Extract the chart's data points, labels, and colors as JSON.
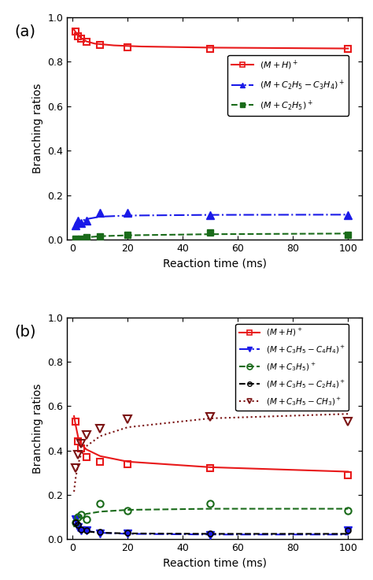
{
  "panel_a": {
    "red_x": [
      1,
      2,
      3,
      5,
      10,
      20,
      50,
      100
    ],
    "red_y": [
      0.935,
      0.915,
      0.905,
      0.89,
      0.875,
      0.865,
      0.86,
      0.86
    ],
    "blue_x": [
      1,
      2,
      3,
      5,
      10,
      20,
      50,
      100
    ],
    "blue_y": [
      0.065,
      0.085,
      0.075,
      0.085,
      0.12,
      0.12,
      0.11,
      0.11
    ],
    "green_x": [
      1,
      2,
      3,
      5,
      10,
      20,
      50,
      100
    ],
    "green_y": [
      0.005,
      0.0,
      0.005,
      0.01,
      0.015,
      0.02,
      0.03,
      0.02
    ],
    "red_fit_x": [
      0.5,
      1,
      1.5,
      2,
      3,
      5,
      8,
      15,
      25,
      50,
      100
    ],
    "red_fit_y": [
      0.945,
      0.935,
      0.928,
      0.92,
      0.908,
      0.892,
      0.882,
      0.874,
      0.869,
      0.864,
      0.86
    ],
    "blue_fit_x": [
      0.5,
      1,
      2,
      3,
      5,
      10,
      20,
      50,
      100
    ],
    "blue_fit_y": [
      0.048,
      0.06,
      0.075,
      0.083,
      0.092,
      0.103,
      0.108,
      0.111,
      0.112
    ],
    "green_fit_x": [
      0.5,
      1,
      2,
      3,
      5,
      10,
      20,
      50,
      100
    ],
    "green_fit_y": [
      0.002,
      0.004,
      0.006,
      0.008,
      0.01,
      0.015,
      0.019,
      0.024,
      0.027
    ],
    "xlabel": "Reaction time (ms)",
    "ylabel": "Branching ratios",
    "ylim": [
      0.0,
      1.0
    ],
    "xlim": [
      -2,
      105
    ],
    "xticks": [
      0,
      20,
      40,
      60,
      80,
      100
    ],
    "yticks": [
      0.0,
      0.2,
      0.4,
      0.6,
      0.8,
      1.0
    ],
    "label": "(a)"
  },
  "panel_b": {
    "red_x": [
      1,
      2,
      3,
      5,
      10,
      20,
      50,
      100
    ],
    "red_y": [
      0.53,
      0.44,
      0.41,
      0.37,
      0.35,
      0.34,
      0.32,
      0.29
    ],
    "blue_x": [
      1,
      2,
      3,
      5,
      10,
      20,
      50,
      100
    ],
    "blue_y": [
      0.09,
      0.055,
      0.04,
      0.04,
      0.025,
      0.025,
      0.02,
      0.04
    ],
    "green_x": [
      1,
      2,
      3,
      5,
      10,
      20,
      50,
      100
    ],
    "green_y": [
      0.075,
      0.1,
      0.11,
      0.09,
      0.16,
      0.13,
      0.16,
      0.13
    ],
    "black_x": [
      1,
      2,
      3,
      5,
      10,
      20,
      50,
      100
    ],
    "black_y": [
      0.075,
      0.065,
      0.045,
      0.04,
      0.035,
      0.03,
      0.025,
      0.04
    ],
    "brown_x": [
      1,
      2,
      3,
      5,
      10,
      20,
      50,
      100
    ],
    "brown_y": [
      0.32,
      0.38,
      0.43,
      0.47,
      0.5,
      0.54,
      0.55,
      0.53
    ],
    "red_fit_x": [
      0.5,
      1,
      2,
      3,
      5,
      10,
      20,
      50,
      100
    ],
    "red_fit_y": [
      0.555,
      0.52,
      0.46,
      0.43,
      0.405,
      0.375,
      0.35,
      0.325,
      0.305
    ],
    "blue_fit_x": [
      0.5,
      1,
      2,
      3,
      5,
      10,
      20,
      50,
      100
    ],
    "blue_fit_y": [
      0.1,
      0.085,
      0.058,
      0.048,
      0.038,
      0.03,
      0.025,
      0.022,
      0.022
    ],
    "green_fit_x": [
      0.5,
      1,
      2,
      3,
      5,
      10,
      20,
      50,
      100
    ],
    "green_fit_y": [
      0.055,
      0.075,
      0.095,
      0.105,
      0.115,
      0.125,
      0.133,
      0.138,
      0.138
    ],
    "black_fit_x": [
      0.5,
      1,
      2,
      3,
      5,
      10,
      20,
      50,
      100
    ],
    "black_fit_y": [
      0.072,
      0.062,
      0.05,
      0.043,
      0.036,
      0.03,
      0.027,
      0.025,
      0.025
    ],
    "brown_fit_x": [
      0.5,
      1,
      2,
      3,
      5,
      10,
      20,
      50,
      100
    ],
    "brown_fit_y": [
      0.215,
      0.27,
      0.34,
      0.38,
      0.42,
      0.465,
      0.505,
      0.545,
      0.565
    ],
    "xlabel": "Reaction time (ms)",
    "ylabel": "Branching ratios",
    "ylim": [
      0.0,
      1.0
    ],
    "xlim": [
      -2,
      105
    ],
    "xticks": [
      0,
      20,
      40,
      60,
      80,
      100
    ],
    "yticks": [
      0.0,
      0.2,
      0.4,
      0.6,
      0.8,
      1.0
    ],
    "label": "(b)"
  },
  "colors": {
    "red": "#e8191a",
    "blue": "#1a1ae8",
    "green": "#1a6b1a",
    "black": "#000000",
    "brown": "#7b1414"
  }
}
